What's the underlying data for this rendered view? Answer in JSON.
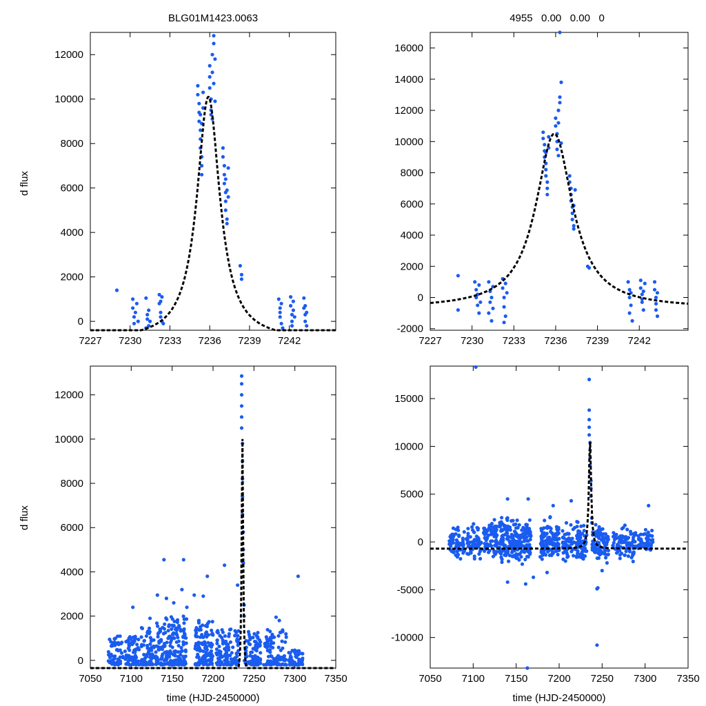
{
  "colors": {
    "points": "#1a5cf0",
    "model": "#000000",
    "frame": "#000000"
  },
  "chart_data": [
    {
      "type": "scatter",
      "panel": "top-left",
      "title": "BLG01M1423.0063",
      "xlabel": "",
      "ylabel": "d flux",
      "xlim": [
        7227,
        7245.5
      ],
      "ylim": [
        -400,
        13000
      ],
      "xticks": [
        7227,
        7230,
        7233,
        7236,
        7239,
        7242
      ],
      "yticks": [
        0,
        2000,
        4000,
        6000,
        8000,
        10000,
        12000
      ],
      "model": {
        "peak_time": 7235.9,
        "peak_flux": 10100,
        "tE": 1.05,
        "baseline": -850
      },
      "points": [
        [
          7229.0,
          1400
        ],
        [
          7230.2,
          1000
        ],
        [
          7230.2,
          600
        ],
        [
          7230.3,
          200
        ],
        [
          7230.3,
          -100
        ],
        [
          7230.4,
          400
        ],
        [
          7230.5,
          800
        ],
        [
          7230.6,
          0
        ],
        [
          7231.2,
          1050
        ],
        [
          7231.2,
          -300
        ],
        [
          7231.3,
          300
        ],
        [
          7231.3,
          100
        ],
        [
          7231.4,
          500
        ],
        [
          7231.4,
          -200
        ],
        [
          7231.5,
          0
        ],
        [
          7232.2,
          1200
        ],
        [
          7232.2,
          800
        ],
        [
          7232.3,
          400
        ],
        [
          7232.3,
          200
        ],
        [
          7232.4,
          1100
        ],
        [
          7232.4,
          0
        ],
        [
          7232.5,
          -100
        ],
        [
          7232.3,
          900
        ],
        [
          7235.1,
          10600
        ],
        [
          7235.1,
          10200
        ],
        [
          7235.2,
          9800
        ],
        [
          7235.2,
          9400
        ],
        [
          7235.2,
          9000
        ],
        [
          7235.3,
          8600
        ],
        [
          7235.3,
          8200
        ],
        [
          7235.3,
          7800
        ],
        [
          7235.4,
          7400
        ],
        [
          7235.4,
          7000
        ],
        [
          7235.4,
          6600
        ],
        [
          7235.5,
          9600
        ],
        [
          7235.5,
          10300
        ],
        [
          7235.3,
          9300
        ],
        [
          7235.4,
          8900
        ],
        [
          7236.0,
          11500
        ],
        [
          7236.0,
          11000
        ],
        [
          7236.0,
          10500
        ],
        [
          7236.1,
          10000
        ],
        [
          7236.1,
          9500
        ],
        [
          7236.2,
          9100
        ],
        [
          7236.2,
          12000
        ],
        [
          7236.3,
          12500
        ],
        [
          7236.3,
          12850
        ],
        [
          7236.2,
          11200
        ],
        [
          7236.3,
          10700
        ],
        [
          7236.4,
          9900
        ],
        [
          7236.1,
          9300
        ],
        [
          7236.4,
          11800
        ],
        [
          7237.0,
          7800
        ],
        [
          7237.0,
          7400
        ],
        [
          7237.1,
          7000
        ],
        [
          7237.1,
          6600
        ],
        [
          7237.1,
          6200
        ],
        [
          7237.2,
          5800
        ],
        [
          7237.2,
          5400
        ],
        [
          7237.2,
          5000
        ],
        [
          7237.3,
          4600
        ],
        [
          7237.3,
          4400
        ],
        [
          7237.2,
          6400
        ],
        [
          7237.3,
          5900
        ],
        [
          7237.4,
          6900
        ],
        [
          7237.4,
          5600
        ],
        [
          7238.3,
          2500
        ],
        [
          7238.4,
          2100
        ],
        [
          7238.4,
          1900
        ],
        [
          7241.2,
          1000
        ],
        [
          7241.3,
          600
        ],
        [
          7241.3,
          200
        ],
        [
          7241.4,
          -100
        ],
        [
          7241.3,
          400
        ],
        [
          7241.5,
          -300
        ],
        [
          7241.4,
          800
        ],
        [
          7242.1,
          1100
        ],
        [
          7242.1,
          700
        ],
        [
          7242.2,
          300
        ],
        [
          7242.2,
          0
        ],
        [
          7242.3,
          500
        ],
        [
          7242.3,
          900
        ],
        [
          7242.4,
          200
        ],
        [
          7242.2,
          -200
        ],
        [
          7243.1,
          1050
        ],
        [
          7243.1,
          600
        ],
        [
          7243.2,
          300
        ],
        [
          7243.2,
          0
        ],
        [
          7243.3,
          400
        ],
        [
          7243.3,
          -200
        ],
        [
          7243.2,
          700
        ]
      ]
    },
    {
      "type": "scatter",
      "panel": "top-right",
      "title": "4955   0.00   0.00   0",
      "xlabel": "",
      "ylabel": "",
      "xlim": [
        7227,
        7245.5
      ],
      "ylim": [
        -2100,
        17000
      ],
      "xticks": [
        7227,
        7230,
        7233,
        7236,
        7239,
        7242
      ],
      "yticks": [
        -2000,
        0,
        2000,
        4000,
        6000,
        8000,
        10000,
        12000,
        14000,
        16000
      ],
      "model": {
        "peak_time": 7235.9,
        "peak_flux": 10500,
        "tE": 1.6,
        "baseline": -700
      },
      "points": [
        [
          7229.0,
          1400
        ],
        [
          7229.0,
          -800
        ],
        [
          7230.2,
          1000
        ],
        [
          7230.3,
          500
        ],
        [
          7230.3,
          0
        ],
        [
          7230.4,
          -500
        ],
        [
          7230.4,
          200
        ],
        [
          7230.5,
          -1000
        ],
        [
          7230.6,
          -300
        ],
        [
          7230.5,
          800
        ],
        [
          7231.2,
          1000
        ],
        [
          7231.2,
          -1000
        ],
        [
          7231.3,
          400
        ],
        [
          7231.3,
          -300
        ],
        [
          7231.4,
          0
        ],
        [
          7231.4,
          -1500
        ],
        [
          7231.5,
          700
        ],
        [
          7231.5,
          -700
        ],
        [
          7232.2,
          1200
        ],
        [
          7232.2,
          600
        ],
        [
          7232.3,
          0
        ],
        [
          7232.3,
          -600
        ],
        [
          7232.4,
          -1200
        ],
        [
          7232.4,
          900
        ],
        [
          7232.5,
          -2200
        ],
        [
          7232.5,
          300
        ],
        [
          7232.3,
          -1600
        ],
        [
          7235.1,
          10600
        ],
        [
          7235.1,
          10200
        ],
        [
          7235.2,
          9800
        ],
        [
          7235.2,
          9400
        ],
        [
          7235.2,
          9000
        ],
        [
          7235.3,
          8600
        ],
        [
          7235.3,
          8200
        ],
        [
          7235.3,
          7800
        ],
        [
          7235.4,
          7400
        ],
        [
          7235.4,
          7000
        ],
        [
          7235.4,
          6600
        ],
        [
          7235.5,
          9600
        ],
        [
          7235.5,
          10300
        ],
        [
          7235.3,
          9300
        ],
        [
          7236.0,
          11500
        ],
        [
          7236.0,
          11000
        ],
        [
          7236.1,
          10500
        ],
        [
          7236.1,
          10000
        ],
        [
          7236.1,
          9500
        ],
        [
          7236.2,
          9100
        ],
        [
          7236.2,
          12000
        ],
        [
          7236.3,
          12500
        ],
        [
          7236.3,
          12850
        ],
        [
          7236.4,
          13800
        ],
        [
          7236.3,
          17000
        ],
        [
          7236.2,
          11200
        ],
        [
          7236.4,
          9900
        ],
        [
          7237.0,
          7800
        ],
        [
          7237.0,
          7400
        ],
        [
          7237.1,
          7000
        ],
        [
          7237.1,
          6600
        ],
        [
          7237.1,
          6200
        ],
        [
          7237.2,
          5800
        ],
        [
          7237.2,
          5400
        ],
        [
          7237.2,
          5000
        ],
        [
          7237.3,
          4600
        ],
        [
          7237.3,
          4400
        ],
        [
          7237.3,
          5900
        ],
        [
          7237.4,
          6900
        ],
        [
          7238.3,
          2000
        ],
        [
          7238.4,
          1900
        ],
        [
          7241.2,
          1000
        ],
        [
          7241.3,
          500
        ],
        [
          7241.3,
          0
        ],
        [
          7241.4,
          -500
        ],
        [
          7241.3,
          -1000
        ],
        [
          7241.5,
          -1500
        ],
        [
          7241.4,
          300
        ],
        [
          7242.1,
          1100
        ],
        [
          7242.1,
          600
        ],
        [
          7242.2,
          200
        ],
        [
          7242.2,
          -300
        ],
        [
          7242.3,
          400
        ],
        [
          7242.3,
          -800
        ],
        [
          7242.4,
          900
        ],
        [
          7242.2,
          -100
        ],
        [
          7243.1,
          1000
        ],
        [
          7243.1,
          500
        ],
        [
          7243.2,
          0
        ],
        [
          7243.2,
          -400
        ],
        [
          7243.3,
          -1200
        ],
        [
          7243.3,
          300
        ],
        [
          7243.2,
          -800
        ]
      ]
    },
    {
      "type": "scatter",
      "panel": "bottom-left",
      "title": "",
      "xlabel": "time (HJD-2450000)",
      "ylabel": "d flux",
      "xlim": [
        7050,
        7350
      ],
      "ylim": [
        -350,
        13300
      ],
      "xticks": [
        7050,
        7100,
        7150,
        7200,
        7250,
        7300,
        7350
      ],
      "yticks": [
        0,
        2000,
        4000,
        6000,
        8000,
        10000,
        12000
      ],
      "model": {
        "peak_time": 7235.9,
        "peak_flux": 10100,
        "tE": 1.05,
        "baseline": -850
      },
      "points": [
        [
          7140,
          4550
        ],
        [
          7164,
          4550
        ],
        [
          7214,
          4300
        ],
        [
          7304,
          3800
        ],
        [
          7193,
          3800
        ],
        [
          7162,
          3200
        ],
        [
          7177,
          2950
        ],
        [
          7188,
          2900
        ],
        [
          7132,
          2950
        ],
        [
          7143,
          2800
        ],
        [
          7102,
          2400
        ],
        [
          7230,
          3400
        ],
        [
          7123,
          1900
        ],
        [
          7152,
          2600
        ],
        [
          7168,
          2400
        ],
        [
          7277,
          1950
        ],
        [
          7281,
          1800
        ],
        [
          7235,
          12850
        ],
        [
          7235,
          12500
        ],
        [
          7235,
          12000
        ],
        [
          7235,
          11500
        ],
        [
          7235,
          11000
        ],
        [
          7235,
          10500
        ],
        [
          7236,
          9800
        ],
        [
          7236,
          9000
        ],
        [
          7236,
          8200
        ],
        [
          7236,
          7400
        ],
        [
          7236,
          6600
        ],
        [
          7237,
          5800
        ],
        [
          7237,
          5000
        ],
        [
          7237,
          4400
        ],
        [
          7238,
          2500
        ],
        [
          7238,
          2000
        ]
      ],
      "clusters": [
        {
          "x": [
            7072,
            7090
          ],
          "ymax": 1300,
          "n": 60
        },
        {
          "x": [
            7092,
            7110
          ],
          "ymax": 1300,
          "n": 70
        },
        {
          "x": [
            7112,
            7128
          ],
          "ymax": 1700,
          "n": 70
        },
        {
          "x": [
            7130,
            7168
          ],
          "ymax": 2200,
          "n": 200
        },
        {
          "x": [
            7178,
            7200
          ],
          "ymax": 2100,
          "n": 120
        },
        {
          "x": [
            7204,
            7232
          ],
          "ymax": 1700,
          "n": 120
        },
        {
          "x": [
            7238,
            7258
          ],
          "ymax": 1500,
          "n": 90
        },
        {
          "x": [
            7262,
            7290
          ],
          "ymax": 1600,
          "n": 90
        },
        {
          "x": [
            7292,
            7310
          ],
          "ymax": 700,
          "n": 50
        }
      ]
    },
    {
      "type": "scatter",
      "panel": "bottom-right",
      "title": "",
      "xlabel": "time (HJD-2450000)",
      "ylabel": "",
      "xlim": [
        7050,
        7350
      ],
      "ylim": [
        -13200,
        18400
      ],
      "xticks": [
        7050,
        7100,
        7150,
        7200,
        7250,
        7300,
        7350
      ],
      "yticks": [
        -10000,
        -5000,
        0,
        5000,
        10000,
        15000
      ],
      "model": {
        "peak_time": 7235.9,
        "peak_flux": 10500,
        "tE": 1.6,
        "baseline": -700
      },
      "points": [
        [
          7103,
          18300
        ],
        [
          7163,
          -13200
        ],
        [
          7244,
          -10800
        ],
        [
          7245,
          -4800
        ],
        [
          7244,
          -4900
        ],
        [
          7140,
          4500
        ],
        [
          7164,
          4500
        ],
        [
          7214,
          4300
        ],
        [
          7304,
          3800
        ],
        [
          7193,
          3800
        ],
        [
          7235,
          17000
        ],
        [
          7235,
          13800
        ],
        [
          7235,
          12800
        ],
        [
          7235,
          12000
        ],
        [
          7235,
          11200
        ],
        [
          7236,
          10400
        ],
        [
          7236,
          9600
        ],
        [
          7236,
          8800
        ],
        [
          7236,
          8000
        ],
        [
          7236,
          7200
        ],
        [
          7237,
          6400
        ],
        [
          7237,
          5600
        ],
        [
          7237,
          4800
        ],
        [
          7238,
          2500
        ],
        [
          7238,
          2000
        ],
        [
          7140,
          -4200
        ],
        [
          7161,
          -4400
        ],
        [
          7170,
          -3700
        ],
        [
          7186,
          -3200
        ],
        [
          7250,
          -3000
        ]
      ],
      "clusters": [
        {
          "x": [
            7072,
            7090
          ],
          "ymin": -2400,
          "ymax": 2000,
          "n": 60
        },
        {
          "x": [
            7092,
            7110
          ],
          "ymin": -2400,
          "ymax": 2200,
          "n": 70
        },
        {
          "x": [
            7112,
            7128
          ],
          "ymin": -2600,
          "ymax": 3000,
          "n": 70
        },
        {
          "x": [
            7130,
            7168
          ],
          "ymin": -3400,
          "ymax": 3400,
          "n": 220
        },
        {
          "x": [
            7178,
            7200
          ],
          "ymin": -2800,
          "ymax": 3000,
          "n": 120
        },
        {
          "x": [
            7204,
            7232
          ],
          "ymin": -2800,
          "ymax": 2800,
          "n": 120
        },
        {
          "x": [
            7238,
            7258
          ],
          "ymin": -3000,
          "ymax": 2600,
          "n": 90
        },
        {
          "x": [
            7262,
            7290
          ],
          "ymin": -2600,
          "ymax": 2400,
          "n": 90
        },
        {
          "x": [
            7292,
            7310
          ],
          "ymin": -1600,
          "ymax": 1600,
          "n": 50
        }
      ]
    }
  ]
}
